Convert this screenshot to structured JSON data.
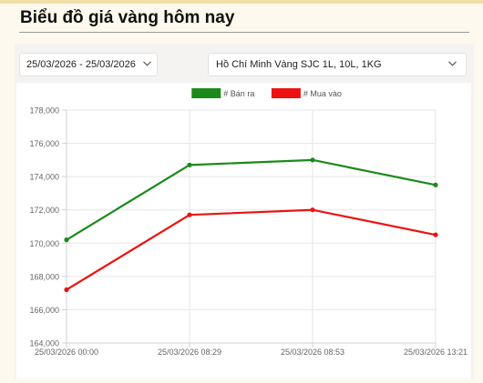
{
  "page": {
    "title": "Biểu đồ giá vàng hôm nay"
  },
  "filters": {
    "date_range": "25/03/2026 - 25/03/2026",
    "location": "Hồ Chí Minh Vàng SJC 1L, 10L, 1KG"
  },
  "icons": {
    "date_dropdown": "chevron-down-icon",
    "location_dropdown": "chevron-down-icon"
  },
  "chart_data": {
    "type": "line",
    "title": "",
    "xlabel": "",
    "ylabel": "",
    "categories": [
      "25/03/2026 00:00",
      "25/03/2026 08:29",
      "25/03/2026 08:53",
      "25/03/2026 13:21"
    ],
    "series": [
      {
        "name": "# Bán ra",
        "color": "#1a8a1a",
        "values": [
          170200,
          174700,
          175000,
          173500
        ]
      },
      {
        "name": "# Mua vào",
        "color": "#ee1111",
        "values": [
          167200,
          171700,
          172000,
          170500
        ]
      }
    ],
    "ylim": [
      164000,
      178000
    ],
    "yticks": [
      164000,
      166000,
      168000,
      170000,
      172000,
      174000,
      176000,
      178000
    ],
    "ytick_labels": [
      "164,000",
      "166,000",
      "168,000",
      "170,000",
      "172,000",
      "174,000",
      "176,000",
      "178,000"
    ],
    "grid": true,
    "legend_position": "top"
  }
}
